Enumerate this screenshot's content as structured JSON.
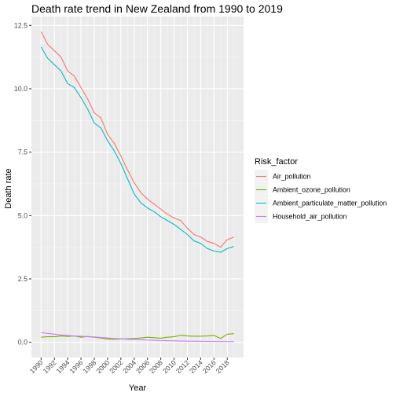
{
  "chart_data": {
    "type": "line",
    "title": "Death rate trend in New Zealand from 1990 to 2019",
    "xlabel": "Year",
    "ylabel": "Death rate",
    "x": [
      1990,
      1991,
      1992,
      1993,
      1994,
      1995,
      1996,
      1997,
      1998,
      1999,
      2000,
      2001,
      2002,
      2003,
      2004,
      2005,
      2006,
      2007,
      2008,
      2009,
      2010,
      2011,
      2012,
      2013,
      2014,
      2015,
      2016,
      2017,
      2018,
      2019
    ],
    "x_ticks": [
      "1990",
      "1992",
      "1994",
      "1996",
      "1998",
      "2000",
      "2002",
      "2004",
      "2006",
      "2008",
      "2010",
      "2012",
      "2014",
      "2016",
      "2018"
    ],
    "xlim": [
      1988.55,
      2020.45
    ],
    "ylim": [
      -0.6,
      12.85
    ],
    "y_ticks": [
      0,
      2.5,
      5,
      7.5,
      10,
      12.5
    ],
    "y_tick_labels": [
      "0.0",
      "2.5",
      "5.0",
      "7.5",
      "10.0",
      "12.5"
    ],
    "grid": true,
    "legend_position": "right",
    "legend_title": "Risk_factor",
    "colors": {
      "panel_background": "#ebebeb",
      "grid_major": "#ffffff",
      "grid_minor": "#f5f5f5"
    },
    "series": [
      {
        "name": "Air_pollution",
        "color": "#F8766D",
        "values": [
          12.25,
          11.75,
          11.5,
          11.25,
          10.7,
          10.5,
          10.05,
          9.6,
          9.05,
          8.85,
          8.2,
          7.85,
          7.35,
          6.8,
          6.3,
          5.9,
          5.65,
          5.45,
          5.25,
          5.05,
          4.9,
          4.8,
          4.5,
          4.25,
          4.15,
          3.98,
          3.9,
          3.75,
          4.05,
          4.15
        ]
      },
      {
        "name": "Ambient_ozone_pollution",
        "color": "#7CAE00",
        "values": [
          0.2,
          0.22,
          0.22,
          0.25,
          0.23,
          0.25,
          0.2,
          0.23,
          0.2,
          0.17,
          0.13,
          0.12,
          0.13,
          0.14,
          0.15,
          0.17,
          0.2,
          0.18,
          0.16,
          0.2,
          0.22,
          0.28,
          0.25,
          0.24,
          0.24,
          0.25,
          0.27,
          0.15,
          0.32,
          0.34
        ]
      },
      {
        "name": "Ambient_particulate_matter_pollution",
        "color": "#00BFC4",
        "values": [
          11.65,
          11.2,
          10.95,
          10.7,
          10.2,
          10.05,
          9.65,
          9.2,
          8.65,
          8.45,
          7.95,
          7.55,
          7.05,
          6.45,
          5.85,
          5.5,
          5.3,
          5.15,
          4.95,
          4.8,
          4.65,
          4.45,
          4.25,
          4.0,
          3.9,
          3.7,
          3.6,
          3.55,
          3.7,
          3.78
        ]
      },
      {
        "name": "Household_air_pollution",
        "color": "#C77CFF",
        "values": [
          0.38,
          0.35,
          0.32,
          0.29,
          0.27,
          0.25,
          0.24,
          0.22,
          0.21,
          0.19,
          0.17,
          0.15,
          0.14,
          0.12,
          0.11,
          0.1,
          0.09,
          0.08,
          0.07,
          0.06,
          0.055,
          0.05,
          0.045,
          0.04,
          0.037,
          0.035,
          0.032,
          0.03,
          0.028,
          0.026
        ]
      }
    ]
  }
}
